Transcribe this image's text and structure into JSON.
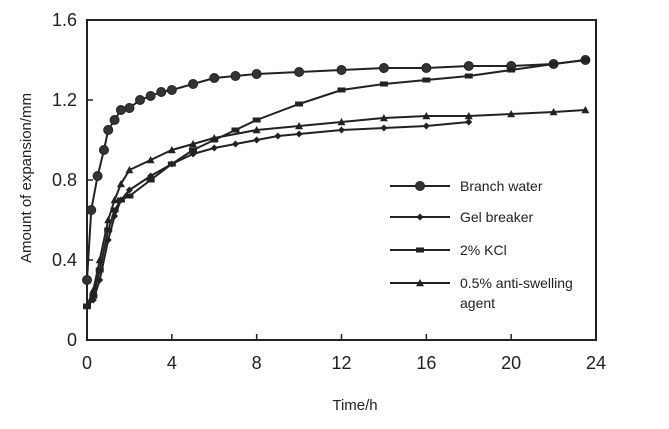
{
  "chart_data": {
    "type": "line",
    "title": "",
    "xlabel": "Time/h",
    "ylabel": "Amount of expansion/mm",
    "xlim": [
      0,
      24
    ],
    "ylim": [
      0,
      1.6
    ],
    "xticks": [
      0,
      4,
      8,
      12,
      16,
      20,
      24
    ],
    "yticks": [
      0,
      0.4,
      0.8,
      1.2,
      1.6
    ],
    "xtick_labels": [
      "0",
      "4",
      "8",
      "12",
      "16",
      "20",
      "24"
    ],
    "ytick_labels": [
      "0",
      "0.4",
      "0.8",
      "1.2",
      "1.6"
    ],
    "grid": false,
    "legend_position": "right",
    "series": [
      {
        "name": "Branch water",
        "marker": "circle",
        "x": [
          0,
          0.2,
          0.5,
          0.8,
          1.0,
          1.3,
          1.6,
          2.0,
          2.5,
          3.0,
          3.5,
          4.0,
          5.0,
          6.0,
          7.0,
          8.0,
          10.0,
          12.0,
          14.0,
          16.0,
          18.0,
          20.0,
          22.0,
          23.5
        ],
        "y": [
          0.3,
          0.65,
          0.82,
          0.95,
          1.05,
          1.1,
          1.15,
          1.16,
          1.2,
          1.22,
          1.24,
          1.25,
          1.28,
          1.31,
          1.32,
          1.33,
          1.34,
          1.35,
          1.36,
          1.36,
          1.37,
          1.37,
          1.38,
          1.4
        ]
      },
      {
        "name": "Gel breaker",
        "marker": "diamond",
        "x": [
          0,
          0.3,
          0.6,
          1.0,
          1.3,
          1.6,
          2.0,
          3.0,
          4.0,
          5.0,
          6.0,
          7.0,
          8.0,
          9.0,
          10.0,
          12.0,
          14.0,
          16.0,
          18.0
        ],
        "y": [
          0.17,
          0.2,
          0.3,
          0.5,
          0.62,
          0.7,
          0.75,
          0.82,
          0.88,
          0.93,
          0.96,
          0.98,
          1.0,
          1.02,
          1.03,
          1.05,
          1.06,
          1.07,
          1.09
        ]
      },
      {
        "name": "2% KCl",
        "marker": "square",
        "x": [
          0,
          0.3,
          0.6,
          1.0,
          1.3,
          1.6,
          2.0,
          3.0,
          4.0,
          5.0,
          6.0,
          7.0,
          8.0,
          10.0,
          12.0,
          14.0,
          16.0,
          18.0,
          20.0,
          22.0,
          23.5
        ],
        "y": [
          0.17,
          0.22,
          0.35,
          0.55,
          0.65,
          0.7,
          0.72,
          0.8,
          0.88,
          0.95,
          1.0,
          1.05,
          1.1,
          1.18,
          1.25,
          1.28,
          1.3,
          1.32,
          1.35,
          1.38,
          1.4
        ]
      },
      {
        "name": "0.5% anti-swelling agent",
        "marker": "triangle",
        "x": [
          0,
          0.3,
          0.6,
          1.0,
          1.3,
          1.6,
          2.0,
          3.0,
          4.0,
          5.0,
          6.0,
          8.0,
          10.0,
          12.0,
          14.0,
          16.0,
          18.0,
          20.0,
          22.0,
          23.5
        ],
        "y": [
          0.17,
          0.25,
          0.4,
          0.6,
          0.7,
          0.78,
          0.85,
          0.9,
          0.95,
          0.98,
          1.01,
          1.05,
          1.07,
          1.09,
          1.11,
          1.12,
          1.12,
          1.13,
          1.14,
          1.15
        ]
      }
    ]
  }
}
